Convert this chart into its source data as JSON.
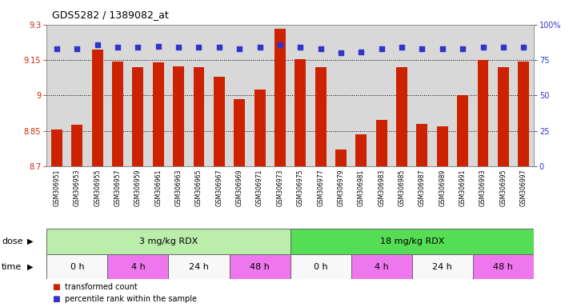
{
  "title": "GDS5282 / 1389082_at",
  "samples": [
    "GSM306951",
    "GSM306953",
    "GSM306955",
    "GSM306957",
    "GSM306959",
    "GSM306961",
    "GSM306963",
    "GSM306965",
    "GSM306967",
    "GSM306969",
    "GSM306971",
    "GSM306973",
    "GSM306975",
    "GSM306977",
    "GSM306979",
    "GSM306981",
    "GSM306983",
    "GSM306985",
    "GSM306987",
    "GSM306989",
    "GSM306991",
    "GSM306993",
    "GSM306995",
    "GSM306997"
  ],
  "bar_values": [
    8.855,
    8.875,
    9.195,
    9.145,
    9.12,
    9.14,
    9.125,
    9.12,
    9.08,
    8.985,
    9.025,
    9.285,
    9.155,
    9.12,
    8.77,
    8.835,
    8.895,
    9.12,
    8.88,
    8.87,
    9.0,
    9.15,
    9.12,
    9.145
  ],
  "percentile_values": [
    83,
    83,
    86,
    84,
    84,
    85,
    84,
    84,
    84,
    83,
    84,
    86,
    84,
    83,
    80,
    81,
    83,
    84,
    83,
    83,
    83,
    84,
    84,
    84
  ],
  "ylim_left": [
    8.7,
    9.3
  ],
  "ylim_right": [
    0,
    100
  ],
  "yticks_left": [
    8.7,
    8.85,
    9.0,
    9.15,
    9.3
  ],
  "ytick_labels_left": [
    "8.7",
    "8.85",
    "9",
    "9.15",
    "9.3"
  ],
  "yticks_right": [
    0,
    25,
    50,
    75,
    100
  ],
  "ytick_labels_right": [
    "0",
    "25",
    "50",
    "75",
    "100%"
  ],
  "bar_color": "#cc2200",
  "dot_color": "#3333cc",
  "background_color": "#ffffff",
  "plot_bg_color": "#d8d8d8",
  "xtick_bg_color": "#d0d0d0",
  "dose_groups": [
    {
      "label": "3 mg/kg RDX",
      "start": 0,
      "end": 12,
      "color": "#bbeeaa"
    },
    {
      "label": "18 mg/kg RDX",
      "start": 12,
      "end": 24,
      "color": "#55dd55"
    }
  ],
  "time_groups": [
    {
      "label": "0 h",
      "start": 0,
      "end": 3,
      "color": "#f8f8f8"
    },
    {
      "label": "4 h",
      "start": 3,
      "end": 6,
      "color": "#ee77ee"
    },
    {
      "label": "24 h",
      "start": 6,
      "end": 9,
      "color": "#f8f8f8"
    },
    {
      "label": "48 h",
      "start": 9,
      "end": 12,
      "color": "#ee77ee"
    },
    {
      "label": "0 h",
      "start": 12,
      "end": 15,
      "color": "#f8f8f8"
    },
    {
      "label": "4 h",
      "start": 15,
      "end": 18,
      "color": "#ee77ee"
    },
    {
      "label": "24 h",
      "start": 18,
      "end": 21,
      "color": "#f8f8f8"
    },
    {
      "label": "48 h",
      "start": 21,
      "end": 24,
      "color": "#ee77ee"
    }
  ],
  "dose_label": "dose",
  "time_label": "time",
  "legend_red": "transformed count",
  "legend_blue": "percentile rank within the sample",
  "grid_dotted_at": [
    8.85,
    9.0,
    9.15
  ],
  "bar_width": 0.55
}
